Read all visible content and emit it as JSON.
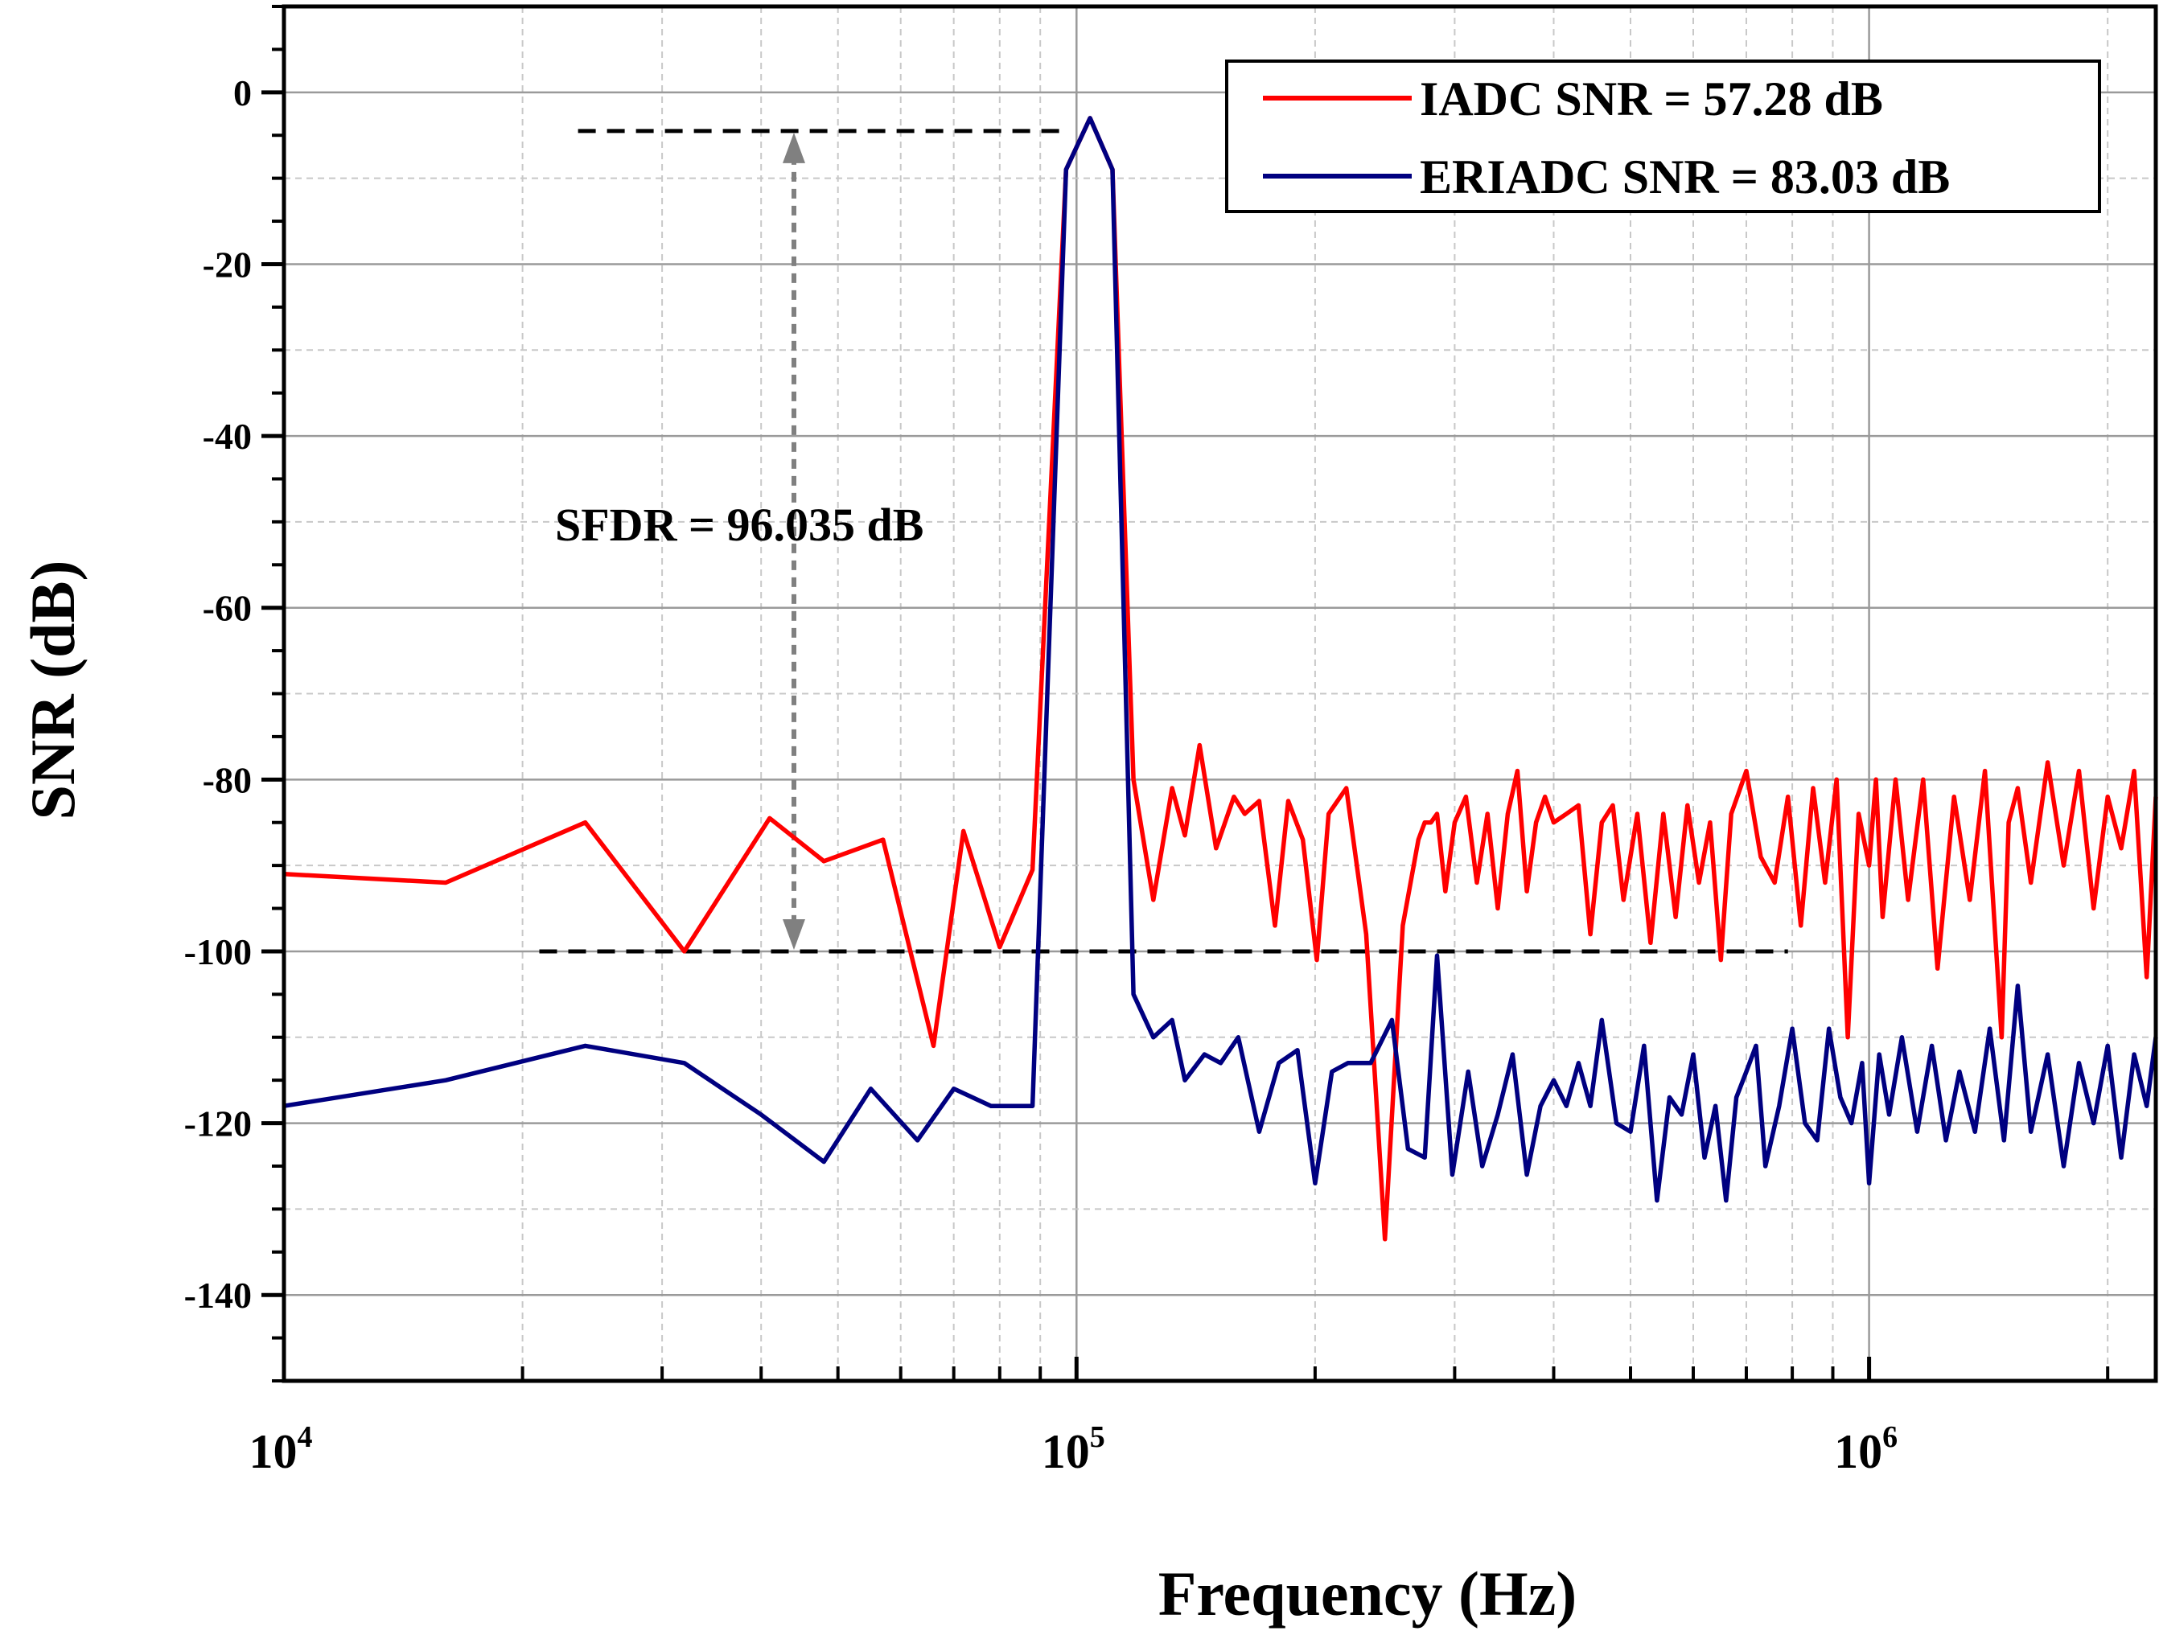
{
  "chart_data": {
    "type": "line",
    "xlabel": "Frequency (Hz)",
    "ylabel": "SNR (dB)",
    "x_scale": "log",
    "xlim": [
      10000,
      2300000
    ],
    "ylim": [
      -150,
      10
    ],
    "x_ticks": [
      {
        "value": 10000,
        "base": "10",
        "exp": "4"
      },
      {
        "value": 100000,
        "base": "10",
        "exp": "5"
      },
      {
        "value": 1000000,
        "base": "10",
        "exp": "6"
      }
    ],
    "y_ticks": [
      0,
      -20,
      -40,
      -60,
      -80,
      -100,
      -120,
      -140
    ],
    "y_tick_labels": [
      "0",
      "-20",
      "-40",
      "-60",
      "-80",
      "-100",
      "-120",
      "-140"
    ],
    "grid": true,
    "legend_position": "top-right",
    "colors": {
      "iadc": "#ff0000",
      "eriadc": "#000080",
      "annotation": "#000000",
      "arrow": "#808080"
    },
    "series": [
      {
        "name": "IADC SNR = 57.28 dB",
        "color": "#ff0000",
        "x": [
          10000,
          16000,
          24000,
          32000,
          41000,
          48000,
          57000,
          66000,
          72000,
          80000,
          88000,
          97000,
          104000,
          111000,
          118000,
          125000,
          132000,
          137000,
          143000,
          150000,
          158000,
          163000,
          170000,
          178000,
          185000,
          193000,
          201000,
          208000,
          219000,
          232000,
          245000,
          258000,
          270000,
          275000,
          280000,
          285000,
          292000,
          300000,
          310000,
          320000,
          330000,
          340000,
          350000,
          360000,
          370000,
          380000,
          390000,
          400000,
          415000,
          430000,
          445000,
          460000,
          475000,
          490000,
          510000,
          530000,
          550000,
          570000,
          590000,
          610000,
          630000,
          650000,
          670000,
          700000,
          730000,
          760000,
          790000,
          820000,
          850000,
          880000,
          910000,
          940000,
          970000,
          1000000,
          1020000,
          1040000,
          1080000,
          1120000,
          1170000,
          1220000,
          1280000,
          1340000,
          1400000,
          1470000,
          1500000,
          1540000,
          1600000,
          1680000,
          1760000,
          1840000,
          1920000,
          2000000,
          2080000,
          2160000,
          2240000,
          2300000
        ],
        "values": [
          -91,
          -92,
          -85,
          -100,
          -84.5,
          -89.5,
          -87,
          -111,
          -86,
          -99.5,
          -90.5,
          -9,
          -3,
          -9,
          -80,
          -94,
          -81,
          -86.5,
          -76,
          -88,
          -82,
          -84,
          -82.5,
          -97,
          -82.5,
          -87,
          -101,
          -84,
          -81,
          -98,
          -133.5,
          -97,
          -87,
          -85,
          -85,
          -84,
          -93,
          -85,
          -82,
          -92,
          -84,
          -95,
          -84,
          -79,
          -93,
          -85,
          -82,
          -85,
          -84,
          -83,
          -98,
          -85,
          -83,
          -94,
          -84,
          -99,
          -84,
          -96,
          -83,
          -92,
          -85,
          -101,
          -84,
          -79,
          -89,
          -92,
          -82,
          -97,
          -81,
          -92,
          -80,
          -110,
          -84,
          -90,
          -80,
          -96,
          -80,
          -94,
          -80,
          -102,
          -82,
          -94,
          -79,
          -110,
          -85,
          -81,
          -92,
          -78,
          -90,
          -79,
          -95,
          -82,
          -88,
          -79,
          -103,
          -82
        ]
      },
      {
        "name": "ERIADC SNR = 83.03 dB",
        "color": "#000080",
        "x": [
          10000,
          16000,
          24000,
          32000,
          40000,
          48000,
          55000,
          63000,
          70000,
          78000,
          88000,
          97000,
          104000,
          111000,
          118000,
          125000,
          132000,
          137000,
          145000,
          152000,
          160000,
          170000,
          180000,
          190000,
          200000,
          210000,
          220000,
          235000,
          250000,
          262000,
          275000,
          285000,
          298000,
          312000,
          325000,
          340000,
          355000,
          370000,
          385000,
          400000,
          415000,
          430000,
          445000,
          460000,
          480000,
          500000,
          520000,
          540000,
          560000,
          580000,
          600000,
          620000,
          640000,
          660000,
          680000,
          700000,
          720000,
          740000,
          770000,
          800000,
          830000,
          860000,
          890000,
          920000,
          950000,
          980000,
          1000000,
          1030000,
          1060000,
          1100000,
          1150000,
          1200000,
          1250000,
          1300000,
          1360000,
          1420000,
          1480000,
          1540000,
          1600000,
          1680000,
          1760000,
          1840000,
          1920000,
          2000000,
          2080000,
          2160000,
          2240000,
          2300000
        ],
        "values": [
          -118,
          -115,
          -111,
          -113,
          -119,
          -124.5,
          -116,
          -122,
          -116,
          -118,
          -118,
          -9,
          -3,
          -9,
          -105,
          -110,
          -108,
          -115,
          -112,
          -113,
          -110,
          -121,
          -113,
          -111.5,
          -127,
          -114,
          -113,
          -113,
          -108,
          -123,
          -124,
          -100.5,
          -126,
          -114,
          -125,
          -119,
          -112,
          -126,
          -118,
          -115,
          -118,
          -113,
          -118,
          -108,
          -120,
          -121,
          -111,
          -129,
          -117,
          -119,
          -112,
          -124,
          -118,
          -129,
          -117,
          -114,
          -111,
          -125,
          -118,
          -109,
          -120,
          -122,
          -109,
          -117,
          -120,
          -113,
          -127,
          -112,
          -119,
          -110,
          -121,
          -111,
          -122,
          -114,
          -121,
          -109,
          -122,
          -104,
          -121,
          -112,
          -125,
          -113,
          -120,
          -111,
          -124,
          -112,
          -118,
          -110
        ]
      }
    ],
    "annotations": {
      "sfdr_text": "SFDR = 96.035 dB",
      "top_level_db": -4.5,
      "floor_level_db": -100,
      "top_line_x": [
        23500,
        96000
      ],
      "floor_line_x": [
        21000,
        790000
      ],
      "arrow_x": 44000
    }
  }
}
